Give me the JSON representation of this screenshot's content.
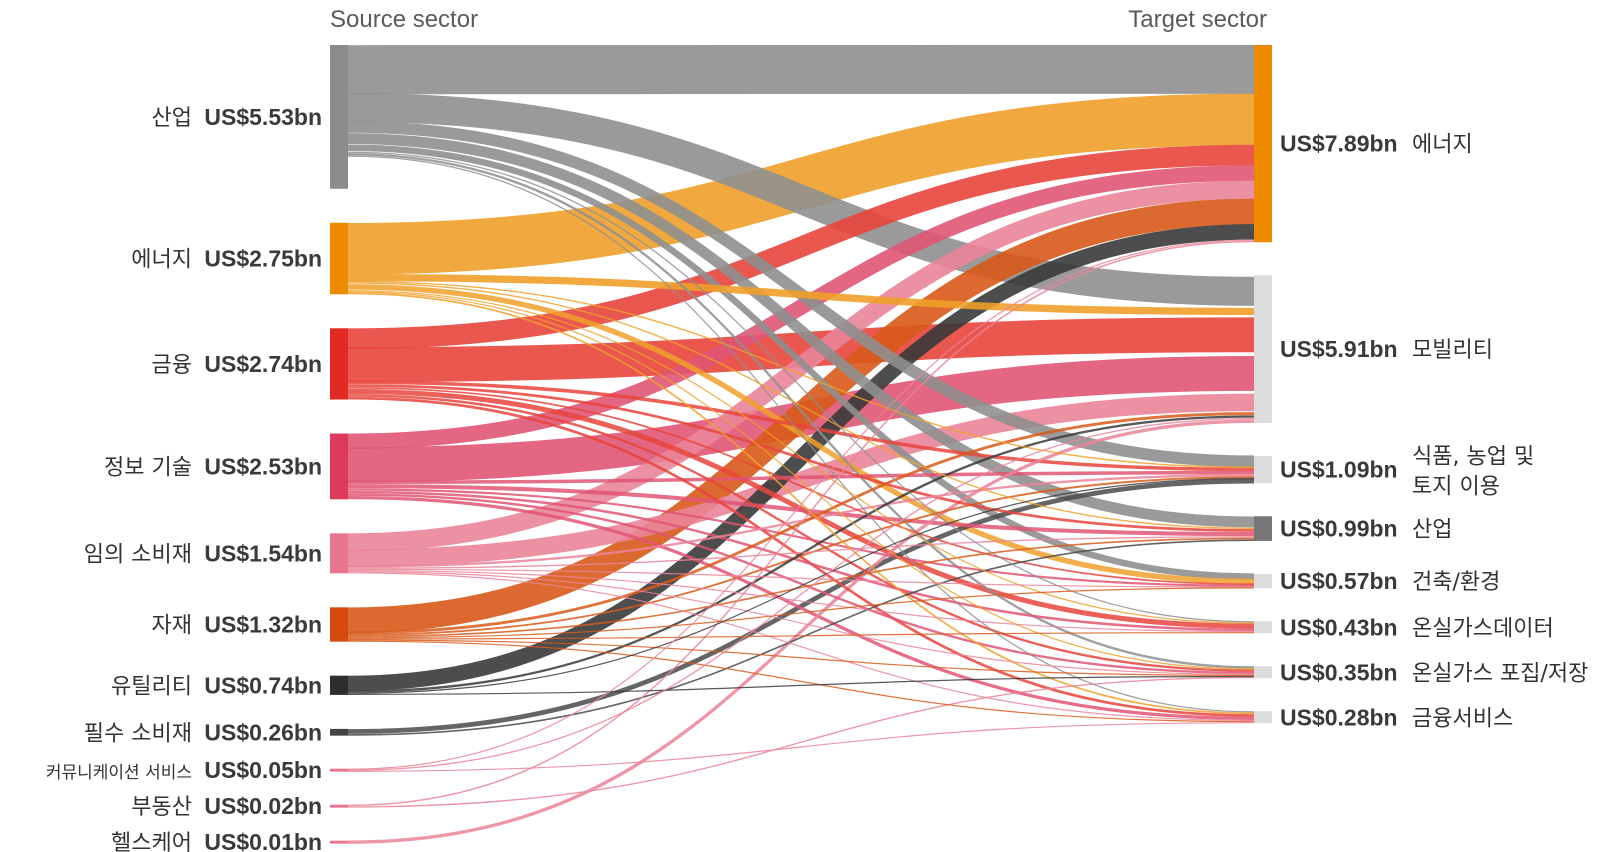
{
  "headers": {
    "source": "Source sector",
    "target": "Target sector"
  },
  "sources": [
    {
      "id": "industry",
      "name": "산업",
      "value_label": "US$5.53bn",
      "value": 5.53,
      "color": "#8c8c8c",
      "link_color": "#8f8f8f"
    },
    {
      "id": "energy",
      "name": "에너지",
      "value_label": "US$2.75bn",
      "value": 2.75,
      "color": "#ee8a00",
      "link_color": "#f0a02a"
    },
    {
      "id": "finance",
      "name": "금융",
      "value_label": "US$2.74bn",
      "value": 2.74,
      "color": "#e12a22",
      "link_color": "#e8453c"
    },
    {
      "id": "it",
      "name": "정보 기술",
      "value_label": "US$2.53bn",
      "value": 2.53,
      "color": "#dd3b5d",
      "link_color": "#e05574"
    },
    {
      "id": "consumer",
      "name": "임의 소비재",
      "value_label": "US$1.54bn",
      "value": 1.54,
      "color": "#e8768f",
      "link_color": "#ea8499"
    },
    {
      "id": "materials",
      "name": "자재",
      "value_label": "US$1.32bn",
      "value": 1.32,
      "color": "#d64a0f",
      "link_color": "#d85a1a"
    },
    {
      "id": "utilities",
      "name": "유틸리티",
      "value_label": "US$0.74bn",
      "value": 0.74,
      "color": "#2e2e2e",
      "link_color": "#3a3a3a"
    },
    {
      "id": "staples",
      "name": "필수 소비재",
      "value_label": "US$0.26bn",
      "value": 0.26,
      "color": "#444444",
      "link_color": "#4a4a4a"
    },
    {
      "id": "comms",
      "name": "커뮤니케이션 서비스",
      "value_label": "US$0.05bn",
      "value": 0.05,
      "color": "#e8768f",
      "link_color": "#ea8499"
    },
    {
      "id": "realestate",
      "name": "부동산",
      "value_label": "US$0.02bn",
      "value": 0.02,
      "color": "#e8768f",
      "link_color": "#ea8499"
    },
    {
      "id": "health",
      "name": "헬스케어",
      "value_label": "US$0.01bn",
      "value": 0.01,
      "color": "#e8768f",
      "link_color": "#ea8499"
    }
  ],
  "targets": [
    {
      "id": "t_energy",
      "name": "에너지",
      "value_label": "US$7.89bn",
      "value": 7.89,
      "color": "#ee8a00"
    },
    {
      "id": "t_mobility",
      "name": "모빌리티",
      "value_label": "US$5.91bn",
      "value": 5.91,
      "color": "#dcdcdc"
    },
    {
      "id": "t_food",
      "name": "식품, 농업 및\n토지 이용",
      "value_label": "US$1.09bn",
      "value": 1.09,
      "color": "#dcdcdc"
    },
    {
      "id": "t_industry",
      "name": "산업",
      "value_label": "US$0.99bn",
      "value": 0.99,
      "color": "#777777"
    },
    {
      "id": "t_building",
      "name": "건축/환경",
      "value_label": "US$0.57bn",
      "value": 0.57,
      "color": "#dcdcdc"
    },
    {
      "id": "t_ghgdata",
      "name": "온실가스데이터",
      "value_label": "US$0.43bn",
      "value": 0.43,
      "color": "#dcdcdc"
    },
    {
      "id": "t_ccs",
      "name": "온실가스 포집/저장",
      "value_label": "US$0.35bn",
      "value": 0.35,
      "color": "#dcdcdc"
    },
    {
      "id": "t_finsvc",
      "name": "금융서비스",
      "value_label": "US$0.28bn",
      "value": 0.28,
      "color": "#dcdcdc"
    }
  ],
  "links": [
    {
      "source": "industry",
      "target": "t_energy",
      "value": 1.9
    },
    {
      "source": "industry",
      "target": "t_mobility",
      "value": 1.0
    },
    {
      "source": "industry",
      "target": "t_food",
      "value": 0.5
    },
    {
      "source": "industry",
      "target": "t_industry",
      "value": 0.4
    },
    {
      "source": "industry",
      "target": "t_building",
      "value": 0.3
    },
    {
      "source": "industry",
      "target": "t_ghgdata",
      "value": 0.05
    },
    {
      "source": "industry",
      "target": "t_ccs",
      "value": 0.1
    },
    {
      "source": "industry",
      "target": "t_finsvc",
      "value": 0.05
    },
    {
      "source": "energy",
      "target": "t_energy",
      "value": 2.0
    },
    {
      "source": "energy",
      "target": "t_mobility",
      "value": 0.25
    },
    {
      "source": "energy",
      "target": "t_food",
      "value": 0.06
    },
    {
      "source": "energy",
      "target": "t_industry",
      "value": 0.05
    },
    {
      "source": "energy",
      "target": "t_building",
      "value": 0.25
    },
    {
      "source": "energy",
      "target": "t_ghgdata",
      "value": 0.03
    },
    {
      "source": "energy",
      "target": "t_ccs",
      "value": 0.04
    },
    {
      "source": "energy",
      "target": "t_finsvc",
      "value": 0.07
    },
    {
      "source": "finance",
      "target": "t_energy",
      "value": 0.8
    },
    {
      "source": "finance",
      "target": "t_mobility",
      "value": 1.2
    },
    {
      "source": "finance",
      "target": "t_food",
      "value": 0.15
    },
    {
      "source": "finance",
      "target": "t_industry",
      "value": 0.1
    },
    {
      "source": "finance",
      "target": "t_building",
      "value": 0.08
    },
    {
      "source": "finance",
      "target": "t_ghgdata",
      "value": 0.2
    },
    {
      "source": "finance",
      "target": "t_ccs",
      "value": 0.1
    },
    {
      "source": "finance",
      "target": "t_finsvc",
      "value": 0.11
    },
    {
      "source": "it",
      "target": "t_energy",
      "value": 0.6
    },
    {
      "source": "it",
      "target": "t_mobility",
      "value": 1.2
    },
    {
      "source": "it",
      "target": "t_food",
      "value": 0.15
    },
    {
      "source": "it",
      "target": "t_industry",
      "value": 0.15
    },
    {
      "source": "it",
      "target": "t_building",
      "value": 0.1
    },
    {
      "source": "it",
      "target": "t_ghgdata",
      "value": 0.1
    },
    {
      "source": "it",
      "target": "t_ccs",
      "value": 0.1
    },
    {
      "source": "it",
      "target": "t_finsvc",
      "value": 0.13
    },
    {
      "source": "consumer",
      "target": "t_energy",
      "value": 0.7
    },
    {
      "source": "consumer",
      "target": "t_mobility",
      "value": 0.6
    },
    {
      "source": "consumer",
      "target": "t_food",
      "value": 0.1
    },
    {
      "source": "consumer",
      "target": "t_industry",
      "value": 0.05
    },
    {
      "source": "consumer",
      "target": "t_building",
      "value": 0.02
    },
    {
      "source": "consumer",
      "target": "t_ghgdata",
      "value": 0.03
    },
    {
      "source": "consumer",
      "target": "t_ccs",
      "value": 0.02
    },
    {
      "source": "consumer",
      "target": "t_finsvc",
      "value": 0.02
    },
    {
      "source": "materials",
      "target": "t_energy",
      "value": 1.0
    },
    {
      "source": "materials",
      "target": "t_mobility",
      "value": 0.1
    },
    {
      "source": "materials",
      "target": "t_food",
      "value": 0.08
    },
    {
      "source": "materials",
      "target": "t_industry",
      "value": 0.06
    },
    {
      "source": "materials",
      "target": "t_building",
      "value": 0.03
    },
    {
      "source": "materials",
      "target": "t_ghgdata",
      "value": 0.02
    },
    {
      "source": "materials",
      "target": "t_ccs",
      "value": 0.02
    },
    {
      "source": "materials",
      "target": "t_finsvc",
      "value": 0.01
    },
    {
      "source": "utilities",
      "target": "t_energy",
      "value": 0.6
    },
    {
      "source": "utilities",
      "target": "t_mobility",
      "value": 0.08
    },
    {
      "source": "utilities",
      "target": "t_food",
      "value": 0.04
    },
    {
      "source": "utilities",
      "target": "t_ccs",
      "value": 0.02
    },
    {
      "source": "staples",
      "target": "t_food",
      "value": 0.2
    },
    {
      "source": "staples",
      "target": "t_industry",
      "value": 0.06
    },
    {
      "source": "comms",
      "target": "t_energy",
      "value": 0.02
    },
    {
      "source": "comms",
      "target": "t_mobility",
      "value": 0.02
    },
    {
      "source": "comms",
      "target": "t_finsvc",
      "value": 0.01
    },
    {
      "source": "realestate",
      "target": "t_energy",
      "value": 0.01
    },
    {
      "source": "realestate",
      "target": "t_ccs",
      "value": 0.01
    },
    {
      "source": "health",
      "target": "t_mobility",
      "value": 0.01
    }
  ]
}
